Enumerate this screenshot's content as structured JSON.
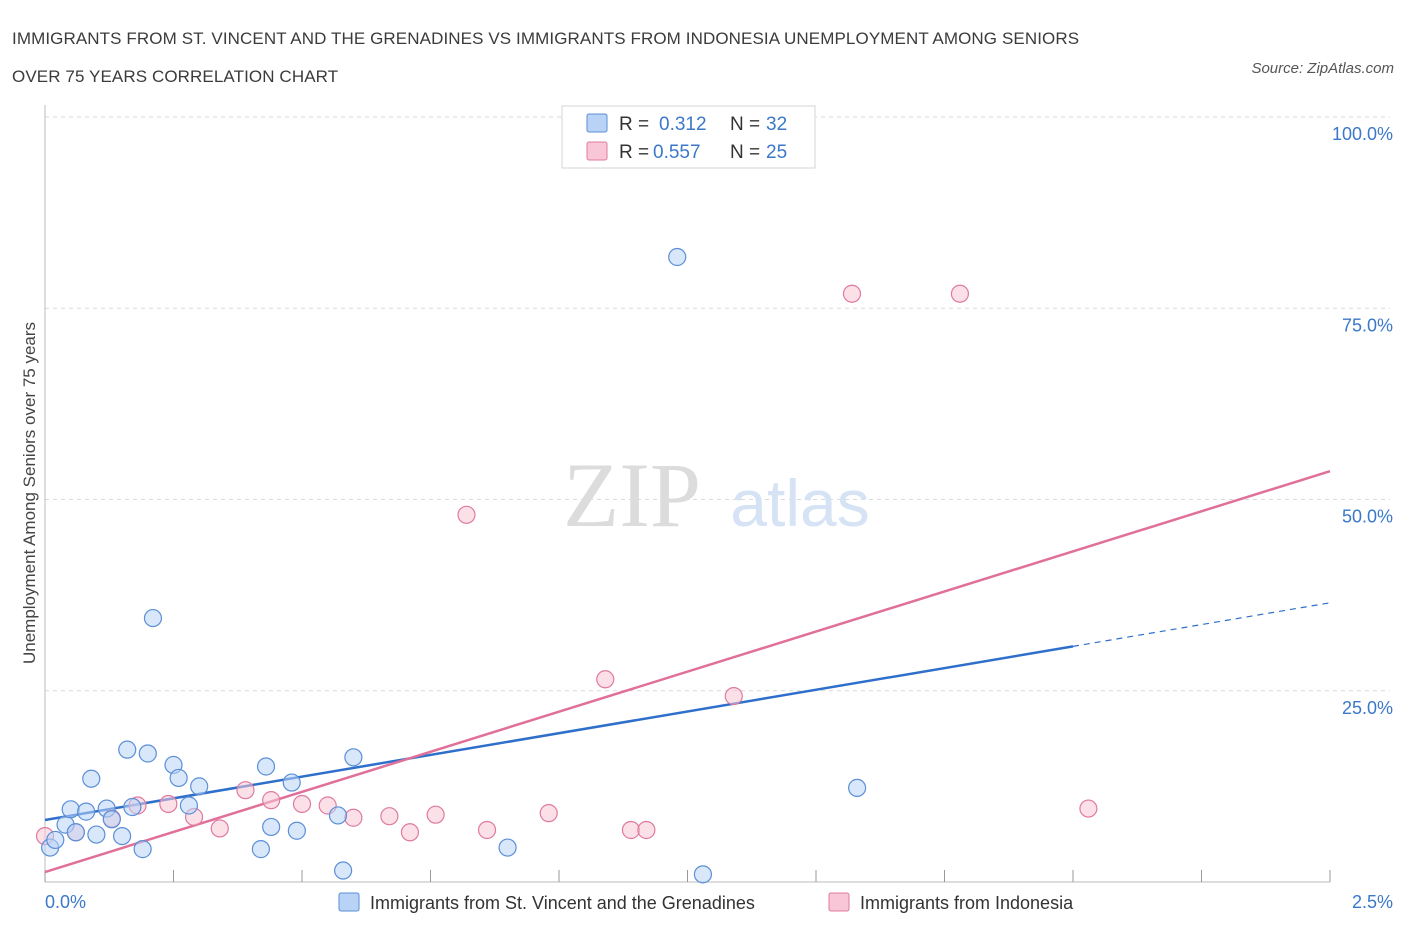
{
  "title": {
    "line1": "IMMIGRANTS FROM ST. VINCENT AND THE GRENADINES VS IMMIGRANTS FROM INDONESIA UNEMPLOYMENT AMONG SENIORS",
    "line2": "OVER 75 YEARS CORRELATION CHART"
  },
  "source": "Source: ZipAtlas.com",
  "watermark": {
    "zip": "ZIP",
    "atlas": "atlas"
  },
  "colors": {
    "blue": "#5b8fd6",
    "blue_fill": "#b9d3f7",
    "blue_line": "#2f6fcc",
    "pink": "#e07aa0",
    "pink_fill": "#f8c6d6",
    "pink_line": "#e0709a",
    "tick_text": "#3b78c9",
    "grid": "#d9d9d9"
  },
  "legend_top": {
    "rows": [
      {
        "r_label": "R =",
        "r_value": "0.312",
        "n_label": "N =",
        "n_value": "32"
      },
      {
        "r_label": "R =",
        "r_value": "0.557",
        "n_label": "N =",
        "n_value": "25"
      }
    ]
  },
  "chart_data": {
    "type": "scatter",
    "title": "IMMIGRANTS FROM ST. VINCENT AND THE GRENADINES VS IMMIGRANTS FROM INDONESIA UNEMPLOYMENT AMONG SENIORS OVER 75 YEARS CORRELATION CHART",
    "xlabel": "",
    "ylabel": "Unemployment Among Seniors over 75 years",
    "xlim": [
      0,
      2.5
    ],
    "ylim": [
      0,
      100
    ],
    "x_tick_labels": [
      "0.0%",
      "2.5%"
    ],
    "y_tick_labels": [
      "100.0%",
      "75.0%",
      "50.0%",
      "25.0%"
    ],
    "y_ticks": [
      100,
      75,
      50,
      25
    ],
    "grid": true,
    "legend_position": "bottom",
    "series": [
      {
        "name": "Immigrants from St. Vincent and the Grenadines",
        "R": 0.312,
        "N": 32,
        "points": [
          [
            0.01,
            4.5
          ],
          [
            0.02,
            5.5
          ],
          [
            0.04,
            7.5
          ],
          [
            0.05,
            9.5
          ],
          [
            0.06,
            6.5
          ],
          [
            0.08,
            9.2
          ],
          [
            0.09,
            13.5
          ],
          [
            0.1,
            6.2
          ],
          [
            0.12,
            9.6
          ],
          [
            0.13,
            8.2
          ],
          [
            0.15,
            6.0
          ],
          [
            0.16,
            17.3
          ],
          [
            0.17,
            9.8
          ],
          [
            0.19,
            4.3
          ],
          [
            0.2,
            16.8
          ],
          [
            0.21,
            34.5
          ],
          [
            0.25,
            15.3
          ],
          [
            0.26,
            13.6
          ],
          [
            0.28,
            10.0
          ],
          [
            0.3,
            12.5
          ],
          [
            0.42,
            4.3
          ],
          [
            0.43,
            15.1
          ],
          [
            0.44,
            7.2
          ],
          [
            0.48,
            13.0
          ],
          [
            0.49,
            6.7
          ],
          [
            0.57,
            8.7
          ],
          [
            0.58,
            1.5
          ],
          [
            0.6,
            16.3
          ],
          [
            0.9,
            4.5
          ],
          [
            1.23,
            81.7
          ],
          [
            1.28,
            1.0
          ],
          [
            1.58,
            12.3
          ]
        ],
        "trend": {
          "x0": 0,
          "y0": 8.1,
          "x1": 2.0,
          "y1": 30.8,
          "dashed_to_x": 2.5,
          "dashed_to_y": 36.5
        }
      },
      {
        "name": "Immigrants from Indonesia",
        "R": 0.557,
        "N": 25,
        "points": [
          [
            0.0,
            6.0
          ],
          [
            0.06,
            6.5
          ],
          [
            0.13,
            8.3
          ],
          [
            0.18,
            10.0
          ],
          [
            0.24,
            10.2
          ],
          [
            0.29,
            8.5
          ],
          [
            0.34,
            7.0
          ],
          [
            0.39,
            12.0
          ],
          [
            0.44,
            10.7
          ],
          [
            0.5,
            10.2
          ],
          [
            0.55,
            10.0
          ],
          [
            0.6,
            8.4
          ],
          [
            0.67,
            8.6
          ],
          [
            0.71,
            6.5
          ],
          [
            0.76,
            8.8
          ],
          [
            0.82,
            48.0
          ],
          [
            0.86,
            6.8
          ],
          [
            0.98,
            9.0
          ],
          [
            1.09,
            26.5
          ],
          [
            1.14,
            6.8
          ],
          [
            1.17,
            6.8
          ],
          [
            1.34,
            24.3
          ],
          [
            1.57,
            76.9
          ],
          [
            1.78,
            76.9
          ],
          [
            2.03,
            9.6
          ]
        ],
        "trend": {
          "x0": 0,
          "y0": 1.3,
          "x1": 2.5,
          "y1": 53.7
        }
      }
    ]
  },
  "legend_bottom": [
    {
      "label": "Immigrants from St. Vincent and the Grenadines"
    },
    {
      "label": "Immigrants from Indonesia"
    }
  ]
}
